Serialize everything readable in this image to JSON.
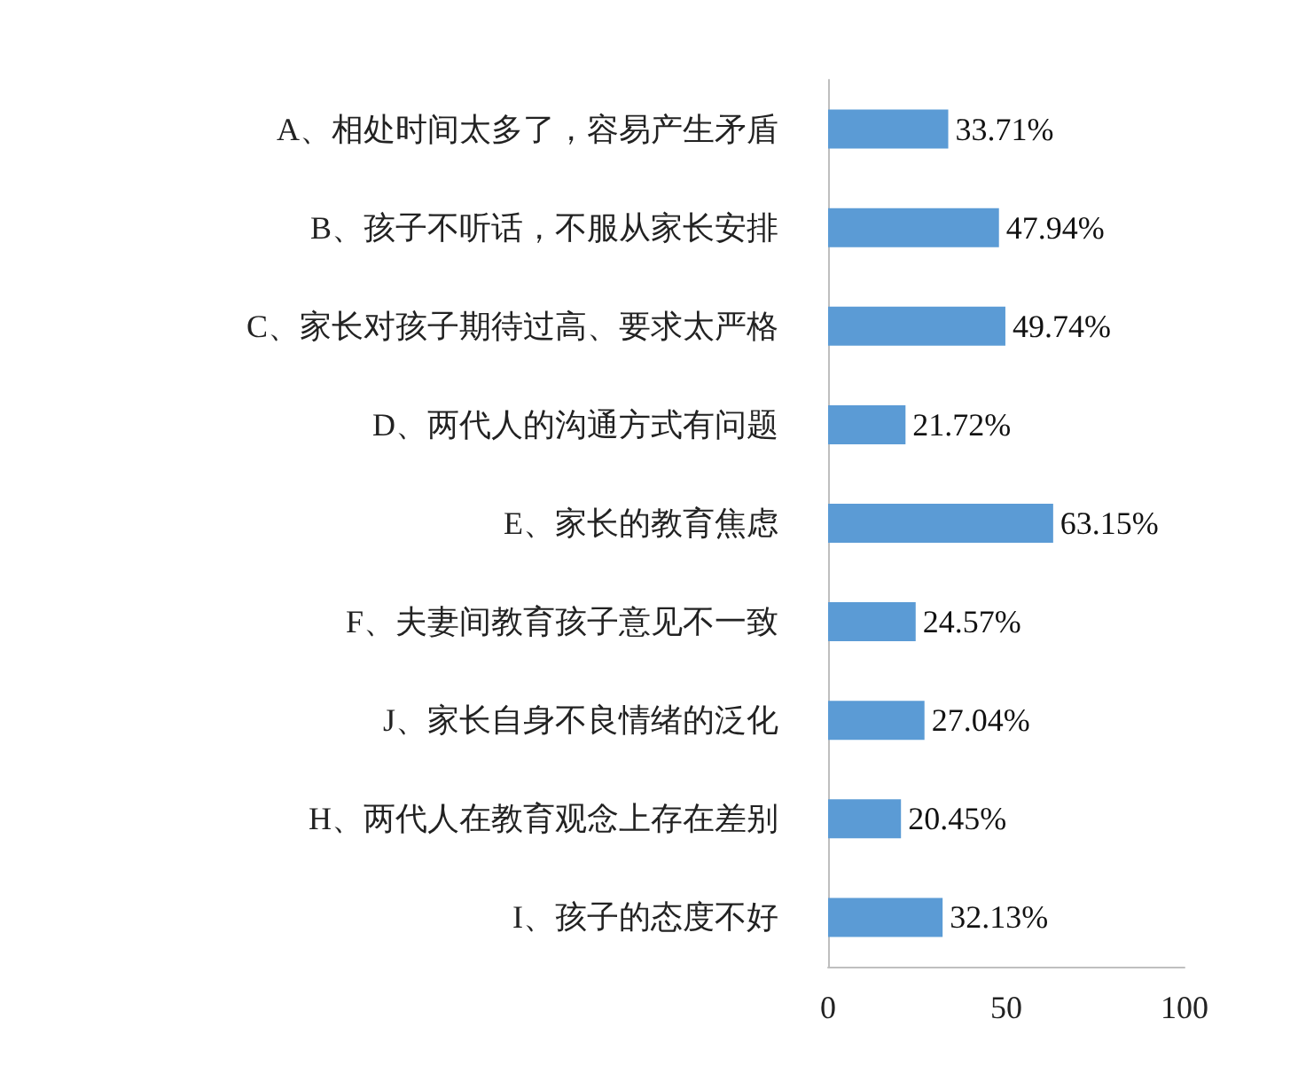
{
  "chart_data": {
    "type": "bar",
    "orientation": "horizontal",
    "categories": [
      "A、相处时间太多了，容易产生矛盾",
      "B、孩子不听话，不服从家长安排",
      "C、家长对孩子期待过高、要求太严格",
      "D、两代人的沟通方式有问题",
      "E、家长的教育焦虑",
      "F、夫妻间教育孩子意见不一致",
      "J、家长自身不良情绪的泛化",
      "H、两代人在教育观念上存在差别",
      "I、孩子的态度不好"
    ],
    "values": [
      33.71,
      47.94,
      49.74,
      21.72,
      63.15,
      24.57,
      27.04,
      20.45,
      32.13
    ],
    "value_labels": [
      "33.71%",
      "47.94%",
      "49.74%",
      "21.72%",
      "63.15%",
      "24.57%",
      "27.04%",
      "20.45%",
      "32.13%"
    ],
    "color": "#5b9bd5",
    "xlim": [
      0,
      100
    ],
    "xticks": [
      0,
      50,
      100
    ],
    "grid": false
  }
}
